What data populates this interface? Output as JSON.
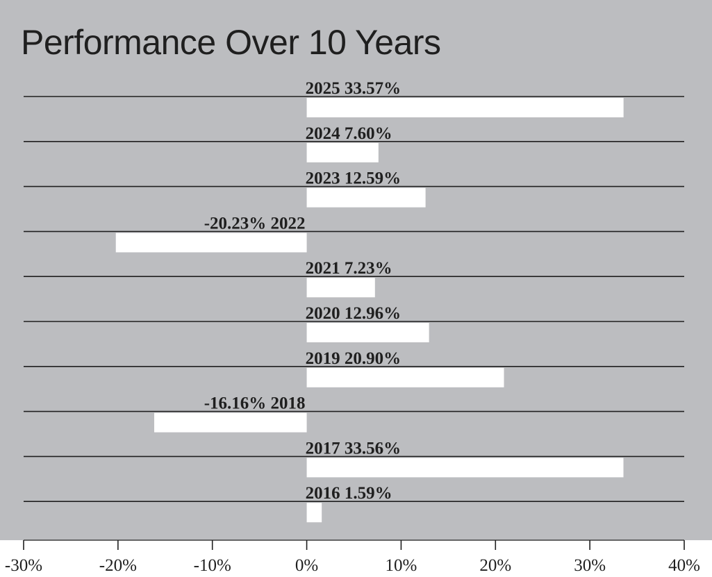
{
  "chart_data": {
    "type": "bar",
    "orientation": "horizontal",
    "title": "Performance Over 10 Years",
    "categories": [
      "2025",
      "2024",
      "2023",
      "2022",
      "2021",
      "2020",
      "2019",
      "2018",
      "2017",
      "2016"
    ],
    "values": [
      33.57,
      7.6,
      12.59,
      -20.23,
      7.23,
      12.96,
      20.9,
      -16.16,
      33.56,
      1.59
    ],
    "labels": [
      "2025 33.57%",
      "2024 7.60%",
      "2023 12.59%",
      "-20.23% 2022",
      "2021 7.23%",
      "2020 12.96%",
      "2019 20.90%",
      "-16.16% 2018",
      "2017 33.56%",
      "2016 1.59%"
    ],
    "xlim": [
      -30,
      40
    ],
    "x_ticks": [
      -30,
      -20,
      -10,
      0,
      10,
      20,
      30,
      40
    ],
    "x_tick_labels": [
      "-30%",
      "-20%",
      "-10%",
      "0%",
      "10%",
      "20%",
      "30%",
      "40%"
    ],
    "grid": true,
    "colors": {
      "background": "#bcbdc0",
      "bar": "#ffffff",
      "line": "#1f1f1f",
      "text": "#1f1f1f",
      "axis_band": "#ffffff"
    }
  }
}
